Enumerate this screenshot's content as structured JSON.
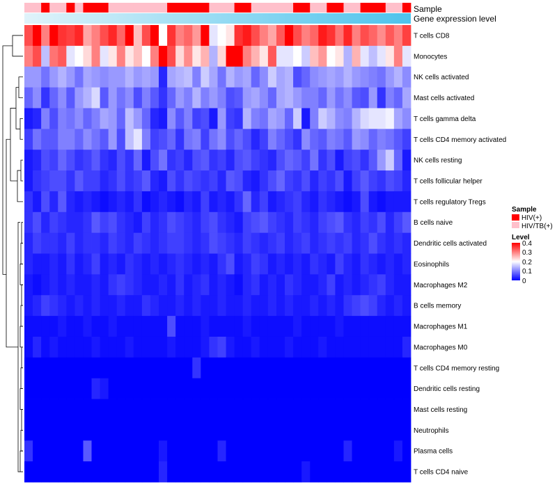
{
  "chart_data": {
    "type": "heatmap",
    "title": "",
    "annotations": {
      "sample_label": "Sample",
      "gene_label": "Gene expression level"
    },
    "rows": [
      "T cells CD8",
      "Monocytes",
      "NK cells activated",
      "Mast cells activated",
      "T cells gamma delta",
      "T cells CD4 memory activated",
      "NK cells resting",
      "T cells follicular helper",
      "T cells regulatory  Tregs",
      "B cells naive",
      "Dendritic cells activated",
      "Eosinophils",
      "Macrophages M2",
      "B cells memory",
      "Macrophages M1",
      "Macrophages M0",
      "T cells CD4 memory resting",
      "Dendritic cells resting",
      "Mast cells resting",
      "Neutrophils",
      "Plasma cells",
      "T cells CD4 naive"
    ],
    "samples": [
      1,
      1,
      0,
      1,
      1,
      0,
      1,
      0,
      0,
      0,
      1,
      1,
      1,
      1,
      1,
      1,
      1,
      0,
      0,
      0,
      0,
      0,
      1,
      1,
      1,
      0,
      0,
      1,
      1,
      1,
      1,
      1,
      0,
      0,
      1,
      1,
      0,
      0,
      1,
      1,
      0,
      0,
      0,
      1,
      1,
      0
    ],
    "values": [
      [
        0.34,
        0.41,
        0.3,
        0.42,
        0.36,
        0.35,
        0.37,
        0.27,
        0.3,
        0.34,
        0.37,
        0.32,
        0.4,
        0.25,
        0.34,
        0.4,
        0.2,
        0.36,
        0.3,
        0.32,
        0.28,
        0.41,
        0.18,
        0.2,
        0.22,
        0.36,
        0.38,
        0.34,
        0.3,
        0.27,
        0.33,
        0.4,
        0.34,
        0.3,
        0.32,
        0.38,
        0.36,
        0.31,
        0.37,
        0.3,
        0.34,
        0.32,
        0.29,
        0.33,
        0.3,
        0.35
      ],
      [
        0.3,
        0.34,
        0.15,
        0.31,
        0.33,
        0.18,
        0.2,
        0.23,
        0.3,
        0.18,
        0.22,
        0.3,
        0.22,
        0.25,
        0.2,
        0.3,
        0.42,
        0.34,
        0.23,
        0.29,
        0.22,
        0.26,
        0.14,
        0.23,
        0.42,
        0.42,
        0.3,
        0.26,
        0.22,
        0.33,
        0.18,
        0.18,
        0.2,
        0.16,
        0.25,
        0.28,
        0.2,
        0.22,
        0.14,
        0.26,
        0.18,
        0.15,
        0.18,
        0.22,
        0.3,
        0.18
      ],
      [
        0.12,
        0.12,
        0.09,
        0.12,
        0.14,
        0.12,
        0.09,
        0.13,
        0.12,
        0.11,
        0.12,
        0.12,
        0.14,
        0.12,
        0.13,
        0.12,
        0.03,
        0.13,
        0.14,
        0.15,
        0.1,
        0.16,
        0.13,
        0.09,
        0.14,
        0.12,
        0.13,
        0.08,
        0.11,
        0.16,
        0.13,
        0.14,
        0.06,
        0.08,
        0.11,
        0.12,
        0.13,
        0.12,
        0.14,
        0.12,
        0.11,
        0.1,
        0.09,
        0.12,
        0.14,
        0.11
      ],
      [
        0.08,
        0.11,
        0.04,
        0.08,
        0.11,
        0.07,
        0.12,
        0.14,
        0.17,
        0.07,
        0.12,
        0.09,
        0.11,
        0.06,
        0.1,
        0.07,
        0.04,
        0.08,
        0.12,
        0.1,
        0.14,
        0.1,
        0.12,
        0.1,
        0.06,
        0.07,
        0.12,
        0.13,
        0.11,
        0.08,
        0.13,
        0.14,
        0.12,
        0.1,
        0.1,
        0.08,
        0.12,
        0.09,
        0.11,
        0.07,
        0.06,
        0.12,
        0.04,
        0.1,
        0.08,
        0.13
      ],
      [
        0.02,
        0.03,
        0.1,
        0.06,
        0.1,
        0.09,
        0.11,
        0.08,
        0.1,
        0.13,
        0.12,
        0.08,
        0.15,
        0.12,
        0.08,
        0.03,
        0.02,
        0.11,
        0.07,
        0.1,
        0.05,
        0.06,
        0.02,
        0.12,
        0.05,
        0.04,
        0.14,
        0.1,
        0.09,
        0.13,
        0.12,
        0.08,
        0.16,
        0.02,
        0.1,
        0.16,
        0.14,
        0.11,
        0.1,
        0.14,
        0.17,
        0.18,
        0.18,
        0.19,
        0.13,
        0.11
      ],
      [
        0.05,
        0.09,
        0.07,
        0.07,
        0.1,
        0.1,
        0.08,
        0.11,
        0.09,
        0.07,
        0.12,
        0.06,
        0.15,
        0.18,
        0.1,
        0.05,
        0.06,
        0.08,
        0.04,
        0.09,
        0.1,
        0.05,
        0.09,
        0.11,
        0.06,
        0.08,
        0.06,
        0.03,
        0.05,
        0.1,
        0.08,
        0.06,
        0.04,
        0.11,
        0.08,
        0.07,
        0.1,
        0.09,
        0.07,
        0.12,
        0.11,
        0.08,
        0.1,
        0.09,
        0.07,
        0.05
      ],
      [
        0.02,
        0.03,
        0.06,
        0.05,
        0.08,
        0.06,
        0.04,
        0.05,
        0.07,
        0.04,
        0.03,
        0.06,
        0.04,
        0.08,
        0.02,
        0.06,
        0.09,
        0.04,
        0.05,
        0.03,
        0.06,
        0.07,
        0.04,
        0.05,
        0.03,
        0.06,
        0.07,
        0.05,
        0.04,
        0.03,
        0.06,
        0.08,
        0.07,
        0.05,
        0.09,
        0.04,
        0.06,
        0.02,
        0.05,
        0.06,
        0.04,
        0.07,
        0.12,
        0.16,
        0.08,
        0.02
      ],
      [
        0.02,
        0.04,
        0.05,
        0.06,
        0.06,
        0.04,
        0.07,
        0.05,
        0.05,
        0.03,
        0.04,
        0.06,
        0.04,
        0.05,
        0.07,
        0.03,
        0.02,
        0.06,
        0.04,
        0.06,
        0.05,
        0.04,
        0.05,
        0.03,
        0.07,
        0.06,
        0.03,
        0.02,
        0.04,
        0.06,
        0.08,
        0.05,
        0.04,
        0.06,
        0.03,
        0.05,
        0.04,
        0.06,
        0.02,
        0.05,
        0.07,
        0.05,
        0.04,
        0.06,
        0.05,
        0.03
      ],
      [
        0.04,
        0.02,
        0.06,
        0.03,
        0.07,
        0.03,
        0.02,
        0.03,
        0.02,
        0.01,
        0.02,
        0.03,
        0.02,
        0.04,
        0.01,
        0.02,
        0.03,
        0.02,
        0.01,
        0.03,
        0.02,
        0.05,
        0.02,
        0.03,
        0.02,
        0.04,
        0.08,
        0.03,
        0.05,
        0.02,
        0.03,
        0.04,
        0.05,
        0.03,
        0.02,
        0.04,
        0.03,
        0.02,
        0.01,
        0.02,
        0.06,
        0.02,
        0.01,
        0.02,
        0.02,
        0.02
      ],
      [
        0.04,
        0.06,
        0.03,
        0.05,
        0.04,
        0.03,
        0.03,
        0.04,
        0.07,
        0.05,
        0.06,
        0.04,
        0.03,
        0.02,
        0.05,
        0.03,
        0.04,
        0.06,
        0.05,
        0.04,
        0.03,
        0.05,
        0.06,
        0.04,
        0.03,
        0.02,
        0.05,
        0.06,
        0.07,
        0.05,
        0.04,
        0.03,
        0.05,
        0.04,
        0.03,
        0.05,
        0.06,
        0.07,
        0.04,
        0.03,
        0.05,
        0.04,
        0.06,
        0.03,
        0.05,
        0.07
      ],
      [
        0.03,
        0.05,
        0.04,
        0.04,
        0.03,
        0.05,
        0.03,
        0.04,
        0.04,
        0.03,
        0.05,
        0.04,
        0.03,
        0.05,
        0.04,
        0.03,
        0.04,
        0.05,
        0.05,
        0.04,
        0.03,
        0.04,
        0.06,
        0.05,
        0.04,
        0.03,
        0.05,
        0.04,
        0.03,
        0.04,
        0.05,
        0.03,
        0.04,
        0.05,
        0.03,
        0.04,
        0.05,
        0.04,
        0.05,
        0.03,
        0.04,
        0.06,
        0.04,
        0.03,
        0.04,
        0.03
      ],
      [
        0.03,
        0.02,
        0.02,
        0.03,
        0.02,
        0.04,
        0.02,
        0.03,
        0.05,
        0.02,
        0.03,
        0.02,
        0.04,
        0.03,
        0.02,
        0.03,
        0.02,
        0.03,
        0.04,
        0.03,
        0.02,
        0.03,
        0.02,
        0.04,
        0.06,
        0.02,
        0.03,
        0.05,
        0.04,
        0.02,
        0.03,
        0.02,
        0.03,
        0.02,
        0.04,
        0.03,
        0.02,
        0.05,
        0.03,
        0.02,
        0.04,
        0.03,
        0.02,
        0.03,
        0.02,
        0.03
      ],
      [
        0.02,
        0.01,
        0.02,
        0.03,
        0.02,
        0.03,
        0.02,
        0.02,
        0.03,
        0.02,
        0.04,
        0.05,
        0.04,
        0.03,
        0.02,
        0.02,
        0.03,
        0.02,
        0.04,
        0.02,
        0.03,
        0.04,
        0.02,
        0.03,
        0.02,
        0.01,
        0.03,
        0.04,
        0.02,
        0.03,
        0.02,
        0.04,
        0.03,
        0.02,
        0.02,
        0.03,
        0.05,
        0.02,
        0.03,
        0.02,
        0.03,
        0.04,
        0.05,
        0.03,
        0.02,
        0.02
      ],
      [
        0.02,
        0.03,
        0.05,
        0.04,
        0.03,
        0.02,
        0.03,
        0.02,
        0.03,
        0.02,
        0.02,
        0.03,
        0.02,
        0.02,
        0.04,
        0.03,
        0.02,
        0.02,
        0.03,
        0.02,
        0.03,
        0.02,
        0.02,
        0.03,
        0.02,
        0.02,
        0.03,
        0.02,
        0.02,
        0.03,
        0.02,
        0.03,
        0.02,
        0.02,
        0.03,
        0.02,
        0.03,
        0.02,
        0.04,
        0.05,
        0.06,
        0.05,
        0.03,
        0.02,
        0.03,
        0.02
      ],
      [
        0.01,
        0.01,
        0.01,
        0.01,
        0.02,
        0.01,
        0.01,
        0.02,
        0.01,
        0.01,
        0.02,
        0.01,
        0.01,
        0.01,
        0.01,
        0.01,
        0.01,
        0.06,
        0.01,
        0.01,
        0.01,
        0.02,
        0.01,
        0.01,
        0.01,
        0.01,
        0.02,
        0.01,
        0.01,
        0.01,
        0.01,
        0.01,
        0.02,
        0.01,
        0.01,
        0.01,
        0.01,
        0.02,
        0.01,
        0.01,
        0.01,
        0.01,
        0.01,
        0.01,
        0.01,
        0.01
      ],
      [
        0.01,
        0.03,
        0.01,
        0.02,
        0.01,
        0.01,
        0.01,
        0.01,
        0.02,
        0.01,
        0.01,
        0.01,
        0.02,
        0.01,
        0.01,
        0.01,
        0.01,
        0.02,
        0.01,
        0.01,
        0.01,
        0.02,
        0.04,
        0.05,
        0.02,
        0.01,
        0.01,
        0.02,
        0.01,
        0.01,
        0.01,
        0.02,
        0.01,
        0.01,
        0.01,
        0.02,
        0.01,
        0.01,
        0.01,
        0.01,
        0.01,
        0.01,
        0.01,
        0.01,
        0.01,
        0.03
      ],
      [
        0.0,
        0.0,
        0.0,
        0.0,
        0.0,
        0.0,
        0.0,
        0.0,
        0.0,
        0.0,
        0.0,
        0.0,
        0.0,
        0.0,
        0.0,
        0.0,
        0.0,
        0.0,
        0.0,
        0.0,
        0.04,
        0.0,
        0.0,
        0.0,
        0.0,
        0.0,
        0.0,
        0.0,
        0.0,
        0.0,
        0.0,
        0.0,
        0.0,
        0.0,
        0.0,
        0.0,
        0.0,
        0.0,
        0.0,
        0.0,
        0.0,
        0.0,
        0.0,
        0.0,
        0.0,
        0.0
      ],
      [
        0.0,
        0.0,
        0.0,
        0.0,
        0.0,
        0.0,
        0.0,
        0.0,
        0.03,
        0.02,
        0.0,
        0.0,
        0.0,
        0.0,
        0.0,
        0.0,
        0.0,
        0.0,
        0.0,
        0.0,
        0.0,
        0.0,
        0.0,
        0.0,
        0.0,
        0.0,
        0.0,
        0.0,
        0.0,
        0.0,
        0.0,
        0.0,
        0.0,
        0.0,
        0.0,
        0.0,
        0.0,
        0.0,
        0.0,
        0.0,
        0.0,
        0.0,
        0.0,
        0.0,
        0.0,
        0.0
      ],
      [
        0.0,
        0.0,
        0.0,
        0.0,
        0.0,
        0.0,
        0.0,
        0.0,
        0.0,
        0.0,
        0.0,
        0.0,
        0.0,
        0.0,
        0.0,
        0.0,
        0.0,
        0.0,
        0.0,
        0.0,
        0.0,
        0.0,
        0.0,
        0.0,
        0.0,
        0.0,
        0.0,
        0.0,
        0.0,
        0.0,
        0.0,
        0.0,
        0.0,
        0.0,
        0.0,
        0.0,
        0.0,
        0.0,
        0.0,
        0.0,
        0.0,
        0.0,
        0.0,
        0.0,
        0.0,
        0.0
      ],
      [
        0.0,
        0.0,
        0.0,
        0.0,
        0.0,
        0.0,
        0.0,
        0.0,
        0.0,
        0.0,
        0.0,
        0.0,
        0.0,
        0.0,
        0.0,
        0.0,
        0.0,
        0.0,
        0.0,
        0.0,
        0.0,
        0.0,
        0.0,
        0.0,
        0.0,
        0.0,
        0.0,
        0.0,
        0.0,
        0.0,
        0.0,
        0.0,
        0.0,
        0.0,
        0.0,
        0.0,
        0.0,
        0.0,
        0.0,
        0.0,
        0.0,
        0.0,
        0.0,
        0.0,
        0.0,
        0.0
      ],
      [
        0.04,
        0.0,
        0.0,
        0.0,
        0.0,
        0.0,
        0.0,
        0.07,
        0.0,
        0.0,
        0.0,
        0.0,
        0.0,
        0.0,
        0.0,
        0.0,
        0.02,
        0.0,
        0.0,
        0.0,
        0.0,
        0.0,
        0.0,
        0.03,
        0.0,
        0.0,
        0.0,
        0.0,
        0.0,
        0.0,
        0.0,
        0.0,
        0.0,
        0.0,
        0.0,
        0.0,
        0.0,
        0.0,
        0.03,
        0.0,
        0.0,
        0.0,
        0.0,
        0.0,
        0.02,
        0.0
      ],
      [
        0.0,
        0.0,
        0.0,
        0.0,
        0.0,
        0.0,
        0.0,
        0.0,
        0.0,
        0.0,
        0.0,
        0.0,
        0.0,
        0.0,
        0.0,
        0.0,
        0.03,
        0.0,
        0.0,
        0.0,
        0.0,
        0.0,
        0.0,
        0.0,
        0.0,
        0.0,
        0.0,
        0.0,
        0.0,
        0.0,
        0.0,
        0.0,
        0.0,
        0.02,
        0.0,
        0.0,
        0.0,
        0.0,
        0.0,
        0.0,
        0.0,
        0.0,
        0.0,
        0.0,
        0.0,
        0.0
      ]
    ],
    "legend": {
      "sample_title": "Sample",
      "sample_items": [
        {
          "label": "HIV(+)",
          "color": "#ff0000"
        },
        {
          "label": "HIV/TB(+)",
          "color": "#ffc0cb"
        }
      ],
      "level_title": "Level",
      "level_ticks": [
        "0.4",
        "0.3",
        "0.2",
        "0.1",
        "0"
      ],
      "level_range": [
        0,
        0.4
      ]
    },
    "colors": {
      "low": "#0000ff",
      "mid": "#ffffff",
      "high": "#ff0000",
      "gene_start": "#e0f3fa",
      "gene_end": "#4dc3ec"
    }
  }
}
